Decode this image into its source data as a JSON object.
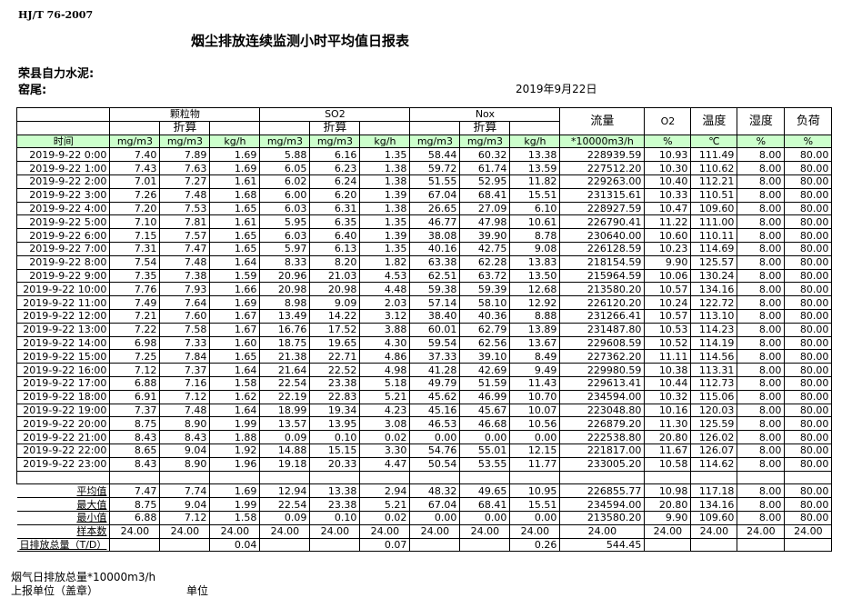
{
  "header": {
    "standard": "HJ/T  76-2007",
    "title": "烟尘排放连续监测小时平均值日报表",
    "company": "荣县自力水泥:",
    "kiln": "窑尾:",
    "date": "2019年9月22日"
  },
  "columns": {
    "groups": [
      "颗粒物",
      "SO2",
      "Nox"
    ],
    "converted": "折算",
    "flow": "流量",
    "o2": "O2",
    "temp": "温度",
    "humidity": "湿度",
    "load": "负荷",
    "units": [
      "时间",
      "mg/m3",
      "mg/m3",
      "kg/h",
      "mg/m3",
      "mg/m3",
      "kg/h",
      "mg/m3",
      "mg/m3",
      "kg/h",
      "*10000m3/h",
      "%",
      "℃",
      "%",
      "%"
    ]
  },
  "rows": [
    [
      "2019-9-22 0:00",
      "7.40",
      "7.89",
      "1.69",
      "5.88",
      "6.16",
      "1.35",
      "58.44",
      "60.32",
      "13.38",
      "228939.59",
      "10.93",
      "111.49",
      "8.00",
      "80.00"
    ],
    [
      "2019-9-22 1:00",
      "7.43",
      "7.63",
      "1.69",
      "6.05",
      "6.23",
      "1.38",
      "59.72",
      "61.74",
      "13.59",
      "227512.20",
      "10.30",
      "110.62",
      "8.00",
      "80.00"
    ],
    [
      "2019-9-22 2:00",
      "7.01",
      "7.27",
      "1.61",
      "6.02",
      "6.24",
      "1.38",
      "51.55",
      "52.95",
      "11.82",
      "229263.00",
      "10.40",
      "112.21",
      "8.00",
      "80.00"
    ],
    [
      "2019-9-22 3:00",
      "7.26",
      "7.48",
      "1.68",
      "6.00",
      "6.20",
      "1.39",
      "67.04",
      "68.41",
      "15.51",
      "231315.61",
      "10.33",
      "110.51",
      "8.00",
      "80.00"
    ],
    [
      "2019-9-22 4:00",
      "7.20",
      "7.53",
      "1.65",
      "6.03",
      "6.31",
      "1.38",
      "26.65",
      "27.09",
      "6.10",
      "228927.59",
      "10.47",
      "109.60",
      "8.00",
      "80.00"
    ],
    [
      "2019-9-22 5:00",
      "7.10",
      "7.81",
      "1.61",
      "5.95",
      "6.35",
      "1.35",
      "46.77",
      "47.98",
      "10.61",
      "226790.41",
      "11.22",
      "111.00",
      "8.00",
      "80.00"
    ],
    [
      "2019-9-22 6:00",
      "7.15",
      "7.57",
      "1.65",
      "6.03",
      "6.40",
      "1.39",
      "38.08",
      "39.90",
      "8.78",
      "230640.00",
      "10.60",
      "110.11",
      "8.00",
      "80.00"
    ],
    [
      "2019-9-22 7:00",
      "7.31",
      "7.47",
      "1.65",
      "5.97",
      "6.13",
      "1.35",
      "40.16",
      "42.75",
      "9.08",
      "226128.59",
      "10.23",
      "114.69",
      "8.00",
      "80.00"
    ],
    [
      "2019-9-22 8:00",
      "7.54",
      "7.48",
      "1.64",
      "8.33",
      "8.20",
      "1.82",
      "63.38",
      "62.28",
      "13.83",
      "218154.59",
      "9.90",
      "125.57",
      "8.00",
      "80.00"
    ],
    [
      "2019-9-22 9:00",
      "7.35",
      "7.38",
      "1.59",
      "20.96",
      "21.03",
      "4.53",
      "62.51",
      "63.72",
      "13.50",
      "215964.59",
      "10.06",
      "130.24",
      "8.00",
      "80.00"
    ],
    [
      "2019-9-22 10:00",
      "7.76",
      "7.93",
      "1.66",
      "20.98",
      "20.98",
      "4.48",
      "59.38",
      "59.39",
      "12.68",
      "213580.20",
      "10.57",
      "134.16",
      "8.00",
      "80.00"
    ],
    [
      "2019-9-22 11:00",
      "7.49",
      "7.64",
      "1.69",
      "8.98",
      "9.09",
      "2.03",
      "57.14",
      "58.10",
      "12.92",
      "226120.20",
      "10.24",
      "122.72",
      "8.00",
      "80.00"
    ],
    [
      "2019-9-22 12:00",
      "7.21",
      "7.60",
      "1.67",
      "13.49",
      "14.22",
      "3.12",
      "38.40",
      "40.36",
      "8.88",
      "231266.41",
      "10.57",
      "113.10",
      "8.00",
      "80.00"
    ],
    [
      "2019-9-22 13:00",
      "7.22",
      "7.58",
      "1.67",
      "16.76",
      "17.52",
      "3.88",
      "60.01",
      "62.79",
      "13.89",
      "231487.80",
      "10.53",
      "114.23",
      "8.00",
      "80.00"
    ],
    [
      "2019-9-22 14:00",
      "6.98",
      "7.33",
      "1.60",
      "18.75",
      "19.65",
      "4.30",
      "59.54",
      "62.56",
      "13.67",
      "229608.59",
      "10.52",
      "114.19",
      "8.00",
      "80.00"
    ],
    [
      "2019-9-22 15:00",
      "7.25",
      "7.84",
      "1.65",
      "21.38",
      "22.71",
      "4.86",
      "37.33",
      "39.10",
      "8.49",
      "227362.20",
      "11.11",
      "114.56",
      "8.00",
      "80.00"
    ],
    [
      "2019-9-22 16:00",
      "7.12",
      "7.37",
      "1.64",
      "21.64",
      "22.52",
      "4.98",
      "41.28",
      "42.69",
      "9.49",
      "229980.59",
      "10.38",
      "113.31",
      "8.00",
      "80.00"
    ],
    [
      "2019-9-22 17:00",
      "6.88",
      "7.16",
      "1.58",
      "22.54",
      "23.38",
      "5.18",
      "49.79",
      "51.59",
      "11.43",
      "229613.41",
      "10.44",
      "112.73",
      "8.00",
      "80.00"
    ],
    [
      "2019-9-22 18:00",
      "6.91",
      "7.12",
      "1.62",
      "22.19",
      "22.83",
      "5.21",
      "45.62",
      "46.99",
      "10.70",
      "234594.00",
      "10.32",
      "115.06",
      "8.00",
      "80.00"
    ],
    [
      "2019-9-22 19:00",
      "7.37",
      "7.48",
      "1.64",
      "18.99",
      "19.34",
      "4.23",
      "45.16",
      "45.67",
      "10.07",
      "223048.80",
      "10.16",
      "120.03",
      "8.00",
      "80.00"
    ],
    [
      "2019-9-22 20:00",
      "8.75",
      "8.90",
      "1.99",
      "13.57",
      "13.95",
      "3.08",
      "46.53",
      "46.68",
      "10.56",
      "226879.20",
      "11.30",
      "125.59",
      "8.00",
      "80.00"
    ],
    [
      "2019-9-22 21:00",
      "8.43",
      "8.43",
      "1.88",
      "0.09",
      "0.10",
      "0.02",
      "0.00",
      "0.00",
      "0.00",
      "222538.80",
      "20.80",
      "126.02",
      "8.00",
      "80.00"
    ],
    [
      "2019-9-22 22:00",
      "8.65",
      "9.04",
      "1.92",
      "14.88",
      "15.15",
      "3.30",
      "54.76",
      "55.01",
      "12.15",
      "221817.00",
      "11.67",
      "126.07",
      "8.00",
      "80.00"
    ],
    [
      "2019-9-22 23:00",
      "8.43",
      "8.90",
      "1.96",
      "19.18",
      "20.33",
      "4.47",
      "50.54",
      "53.55",
      "11.77",
      "233005.20",
      "10.58",
      "114.62",
      "8.00",
      "80.00"
    ]
  ],
  "summary": [
    [
      "平均值",
      "7.47",
      "7.74",
      "1.69",
      "12.94",
      "13.38",
      "2.94",
      "48.32",
      "49.65",
      "10.95",
      "226855.77",
      "10.98",
      "117.18",
      "8.00",
      "80.00"
    ],
    [
      "最大值",
      "8.75",
      "9.04",
      "1.99",
      "22.54",
      "23.38",
      "5.21",
      "67.04",
      "68.41",
      "15.51",
      "234594.00",
      "20.80",
      "134.16",
      "8.00",
      "80.00"
    ],
    [
      "最小值",
      "6.88",
      "7.12",
      "1.58",
      "0.09",
      "0.10",
      "0.02",
      "0.00",
      "0.00",
      "0.00",
      "213580.20",
      "9.90",
      "109.60",
      "8.00",
      "80.00"
    ],
    [
      "样本数",
      "24.00",
      "24.00",
      "24.00",
      "24.00",
      "24.00",
      "24.00",
      "24.00",
      "24.00",
      "24.00",
      "24.00",
      "24.00",
      "24.00",
      "24.00",
      "24.00"
    ],
    [
      "日排放总量（T/D）",
      "",
      "",
      "0.04",
      "",
      "",
      "0.07",
      "",
      "",
      "0.26",
      "544.45",
      "",
      "",
      "",
      ""
    ]
  ],
  "footer": {
    "flue_total": "烟气日排放总量*10000m3/h",
    "reporter": "上报单位（盖章）",
    "unit": "单位"
  }
}
